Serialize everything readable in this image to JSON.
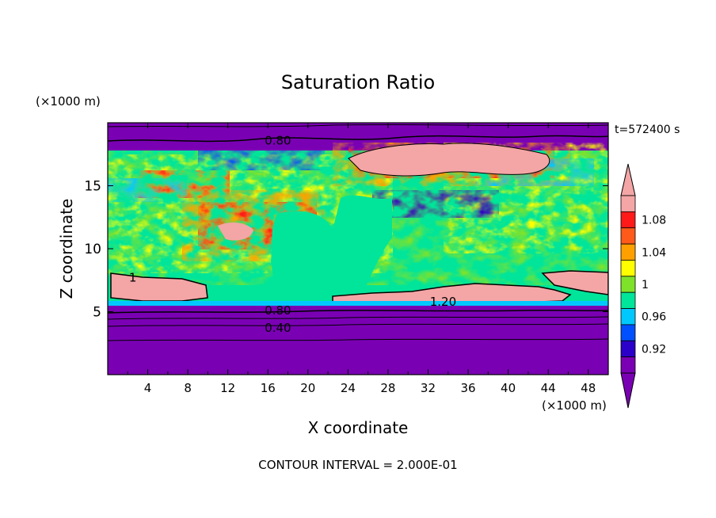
{
  "chart_data": {
    "type": "heatmap",
    "title": "Saturation Ratio",
    "xlabel": "X coordinate",
    "ylabel": "Z coordinate",
    "x_units": "(×1000 m)",
    "y_units": "(×1000 m)",
    "time_label": "t=572400 s",
    "footer": "CONTOUR INTERVAL = 2.000E-01",
    "xlim": [
      0,
      50
    ],
    "ylim": [
      0,
      20
    ],
    "x_ticks": [
      "4",
      "8",
      "12",
      "16",
      "20",
      "24",
      "28",
      "32",
      "36",
      "40",
      "44",
      "48"
    ],
    "y_ticks": [
      "5",
      "10",
      "15"
    ],
    "colorbar": {
      "tick_labels": [
        "1.08",
        "1.04",
        "1",
        "0.96",
        "0.92"
      ],
      "levels": [
        0.9,
        0.92,
        0.94,
        0.96,
        0.98,
        1.0,
        1.02,
        1.04,
        1.06,
        1.08,
        1.1
      ],
      "colors": [
        "#7a00b4",
        "#2b00c8",
        "#0050ff",
        "#00c8ff",
        "#00e59a",
        "#7fe22a",
        "#ffff00",
        "#ffa000",
        "#ff5a1a",
        "#ff1a1a",
        "#f4a5a5"
      ],
      "under_color": "#7a00b4",
      "over_color": "#f4a5a5"
    },
    "contour_labels": [
      {
        "text": "0.80",
        "x": 17.0,
        "y": 18.6
      },
      {
        "text": "0.80",
        "x": 17.0,
        "y": 5.1
      },
      {
        "text": "0.40",
        "x": 17.0,
        "y": 3.7
      },
      {
        "text": "1.20",
        "x": 33.5,
        "y": 5.8
      },
      {
        "text": "1",
        "x": 2.5,
        "y": 7.7
      }
    ]
  }
}
